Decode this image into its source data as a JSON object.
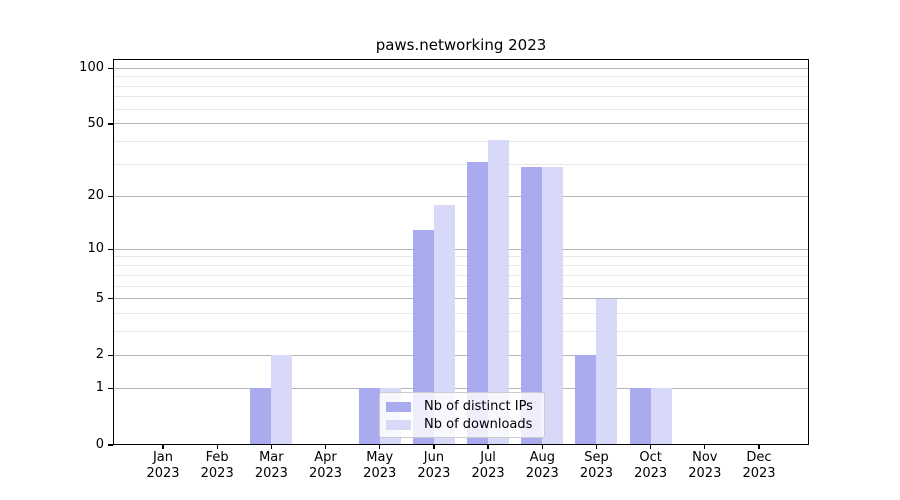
{
  "title": "paws.networking 2023",
  "legend": {
    "items": [
      {
        "label": "Nb of distinct IPs",
        "color": "#aaaaee"
      },
      {
        "label": "Nb of downloads",
        "color": "#d8d8f8"
      }
    ]
  },
  "chart_data": {
    "type": "bar",
    "title": "paws.networking 2023",
    "categories": [
      "Jan 2023",
      "Feb 2023",
      "Mar 2023",
      "Apr 2023",
      "May 2023",
      "Jun 2023",
      "Jul 2023",
      "Aug 2023",
      "Sep 2023",
      "Oct 2023",
      "Nov 2023",
      "Dec 2023"
    ],
    "x_tick_months": [
      "Jan",
      "Feb",
      "Mar",
      "Apr",
      "May",
      "Jun",
      "Jul",
      "Aug",
      "Sep",
      "Oct",
      "Nov",
      "Dec"
    ],
    "x_tick_year": "2023",
    "series": [
      {
        "name": "Nb of distinct IPs",
        "color": "#aaaaee",
        "values": [
          0,
          0,
          1,
          0,
          1,
          13,
          31,
          29,
          2,
          1,
          0,
          0
        ]
      },
      {
        "name": "Nb of downloads",
        "color": "#d8d8f8",
        "values": [
          0,
          0,
          2,
          0,
          1,
          18,
          41,
          29,
          5,
          1,
          0,
          0
        ]
      }
    ],
    "xlabel": "",
    "ylabel": "",
    "yscale": "log10(1+v)",
    "ylim": [
      0,
      112
    ],
    "y_ticks": [
      {
        "v": 100,
        "label": "100"
      },
      {
        "v": 50,
        "label": "50"
      },
      {
        "v": 20,
        "label": "20"
      },
      {
        "v": 10,
        "label": "10"
      },
      {
        "v": 5,
        "label": "5"
      },
      {
        "v": 2,
        "label": "2"
      },
      {
        "v": 1,
        "label": "1"
      },
      {
        "v": 0,
        "label": "0"
      }
    ],
    "y_minor_gridlines": [
      3,
      4,
      6,
      7,
      8,
      9,
      30,
      40,
      60,
      70,
      80,
      90
    ],
    "grid": true,
    "legend_position": "lower-center-left",
    "grid_major_color": "#b4b4b4",
    "grid_minor_color": "#e7e7e7"
  }
}
